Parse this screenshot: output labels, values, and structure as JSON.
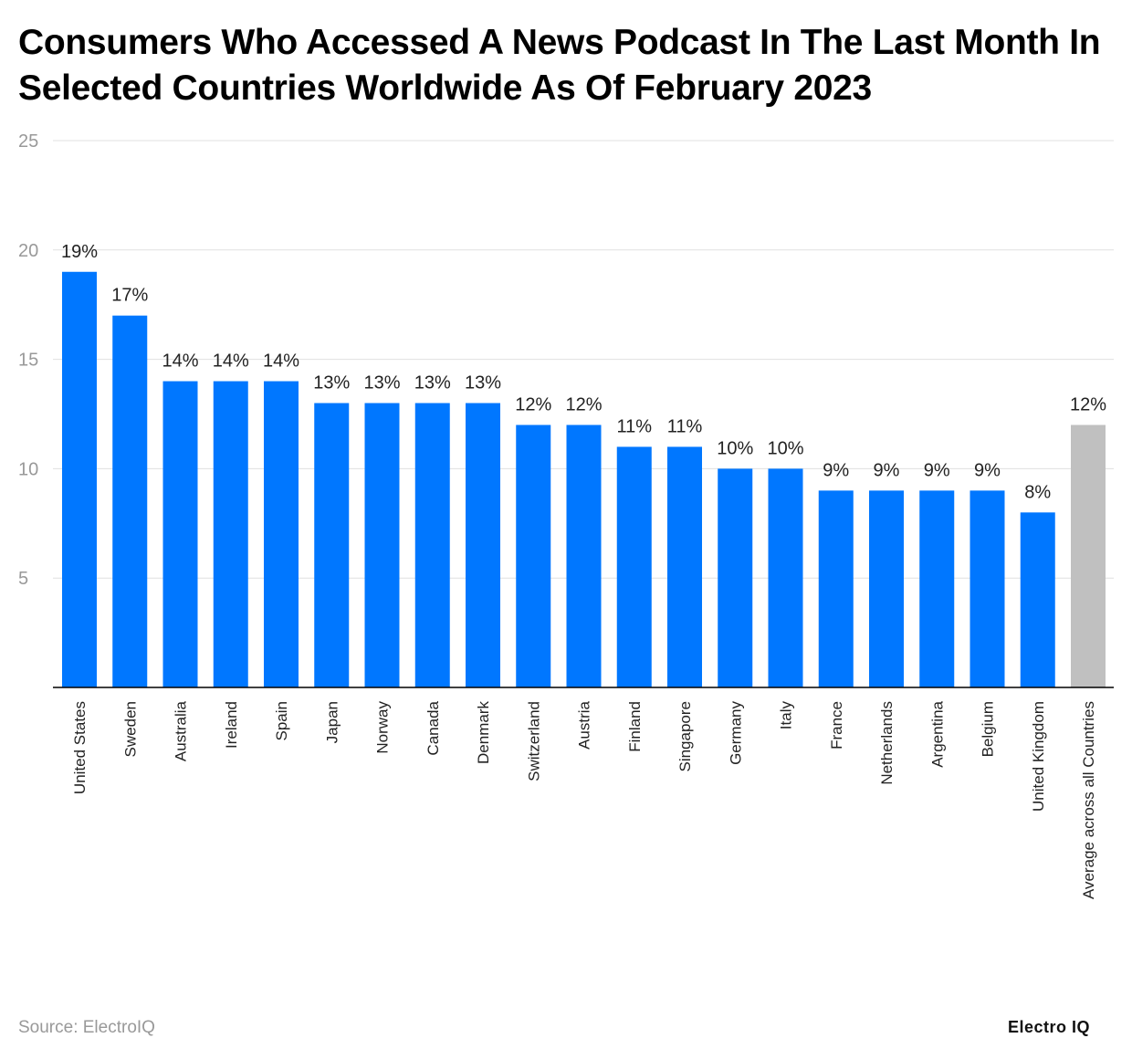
{
  "chart_data": {
    "type": "bar",
    "title": "Consumers Who Accessed A News Podcast In The Last Month In Selected Countries Worldwide As Of February 2023",
    "xlabel": "",
    "ylabel": "",
    "ylim": [
      0,
      25
    ],
    "yticks": [
      5,
      10,
      15,
      20,
      25
    ],
    "grid": true,
    "legend": "none",
    "categories": [
      "United States",
      "Sweden",
      "Australia",
      "Ireland",
      "Spain",
      "Japan",
      "Norway",
      "Canada",
      "Denmark",
      "Switzerland",
      "Austria",
      "Finland",
      "Singapore",
      "Germany",
      "Italy",
      "France",
      "Netherlands",
      "Argentina",
      "Belgium",
      "United Kingdom",
      "Average across all Countries"
    ],
    "values": [
      19,
      17,
      14,
      14,
      14,
      13,
      13,
      13,
      13,
      12,
      12,
      11,
      11,
      10,
      10,
      9,
      9,
      9,
      9,
      8,
      12
    ],
    "data_labels": [
      "19%",
      "17%",
      "14%",
      "14%",
      "14%",
      "13%",
      "13%",
      "13%",
      "13%",
      "12%",
      "12%",
      "11%",
      "11%",
      "10%",
      "10%",
      "9%",
      "9%",
      "9%",
      "9%",
      "8%",
      "12%"
    ],
    "colors": {
      "bar": "#0077ff",
      "average_bar": "#c0c0c0",
      "grid": "#e0e0e0",
      "axis": "#000000"
    }
  },
  "footer": {
    "source": "Source: ElectroIQ",
    "logo": "Electro IQ"
  }
}
